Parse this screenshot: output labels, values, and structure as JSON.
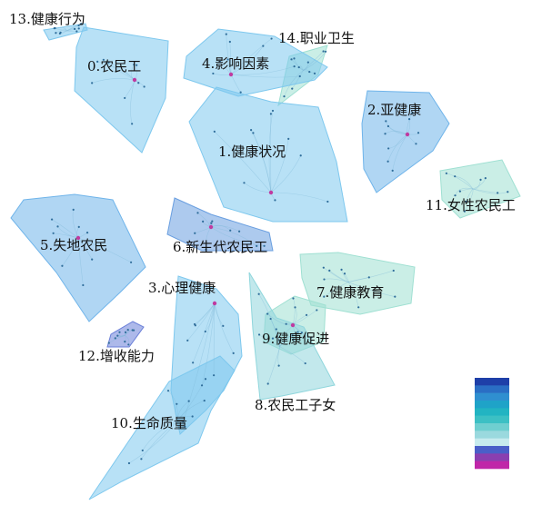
{
  "clusters": [
    {
      "id": "c13",
      "label": "13.健康行为",
      "color": "#7ec8ee"
    },
    {
      "id": "c14",
      "label": "14.职业卫生",
      "color": "#9fe0d2"
    },
    {
      "id": "c0",
      "label": "0.农民工",
      "color": "#7ec8ee"
    },
    {
      "id": "c4",
      "label": "4.影响因素",
      "color": "#7ec8ee"
    },
    {
      "id": "c2",
      "label": "2.亚健康",
      "color": "#6fb4ea"
    },
    {
      "id": "c1",
      "label": "1.健康状况",
      "color": "#7ec8ee"
    },
    {
      "id": "c11",
      "label": "11.女性农民工",
      "color": "#9fe0d2"
    },
    {
      "id": "c5",
      "label": "5.失地农民",
      "color": "#6fb4ea"
    },
    {
      "id": "c6",
      "label": "6.新生代农民工",
      "color": "#6a9fe0"
    },
    {
      "id": "c3",
      "label": "3.心理健康",
      "color": "#7ec8ee"
    },
    {
      "id": "c7",
      "label": "7.健康教育",
      "color": "#9fe0d2"
    },
    {
      "id": "c9",
      "label": "9.健康促进",
      "color": "#9fe0d2"
    },
    {
      "id": "c12",
      "label": "12.增收能力",
      "color": "#6a7fd8"
    },
    {
      "id": "c8",
      "label": "8.农民工子女",
      "color": "#8fd6dc"
    },
    {
      "id": "c10",
      "label": "10.生命质量",
      "color": "#7ec8ee"
    }
  ],
  "legend": {
    "colors": [
      "#1e3fa8",
      "#2a6ec4",
      "#2f8fd0",
      "#1fa3c8",
      "#22b4c2",
      "#3cc0c4",
      "#6fcfd0",
      "#9ad9de",
      "#c7ebee",
      "#4a5fc8",
      "#8a3fb0",
      "#c026a8"
    ]
  }
}
